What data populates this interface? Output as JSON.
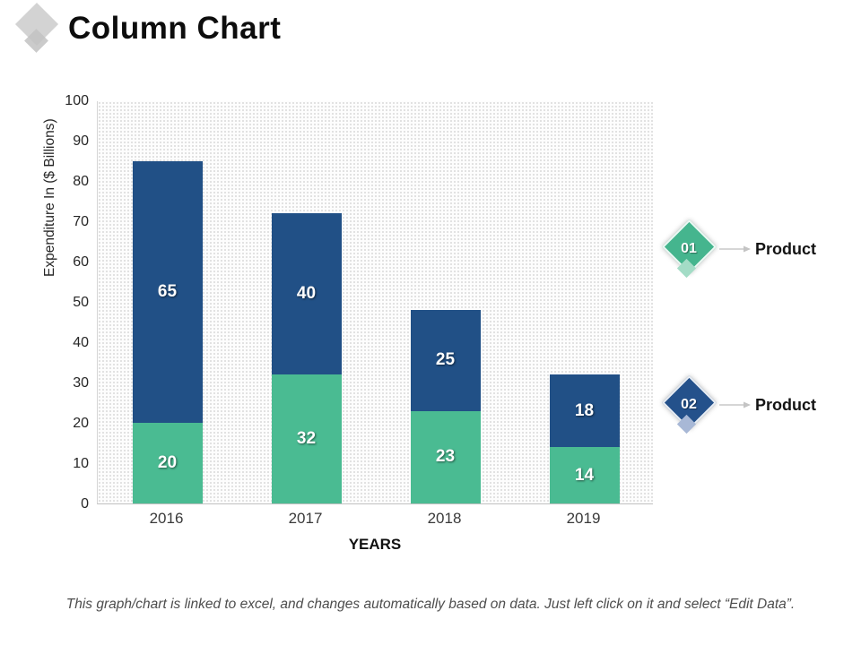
{
  "slide": {
    "title": "Column Chart",
    "footer": "This graph/chart is linked to excel, and changes automatically based on data. Just left click on it and select “Edit Data”."
  },
  "chart_data": {
    "type": "bar",
    "stacked": true,
    "categories": [
      "2016",
      "2017",
      "2018",
      "2019"
    ],
    "series": [
      {
        "key": "product-01",
        "name": "01 Product",
        "color": "#4ABB92",
        "values": [
          20,
          32,
          23,
          14
        ]
      },
      {
        "key": "product-02",
        "name": "02 Product",
        "color": "#215086",
        "values": [
          65,
          40,
          25,
          18
        ]
      }
    ],
    "totals": [
      85,
      72,
      48,
      32
    ],
    "xlabel": "YEARS",
    "ylabel": "Expenditure  In ($ Billions)",
    "ylim": [
      0,
      100
    ],
    "yticks": [
      0,
      10,
      20,
      30,
      40,
      50,
      60,
      70,
      80,
      90,
      100
    ],
    "grid": false,
    "legend_position": "right",
    "plot_background": "dotted-pattern"
  },
  "legend": {
    "items": [
      {
        "badge": "01",
        "label": "Product",
        "color": "#45B58E",
        "color_light": "#A3DCC6"
      },
      {
        "badge": "02",
        "label": "Product",
        "color": "#24518B",
        "color_light": "#A8B8D6"
      }
    ]
  },
  "colors": {
    "series_green": "#4ABB92",
    "series_blue": "#215086",
    "title_text": "#0d0d0d",
    "axis_text": "#262626",
    "footer_text": "#4d4d4d",
    "title_diamond": "#d3d3d3",
    "arrow": "#c9c9c9"
  }
}
